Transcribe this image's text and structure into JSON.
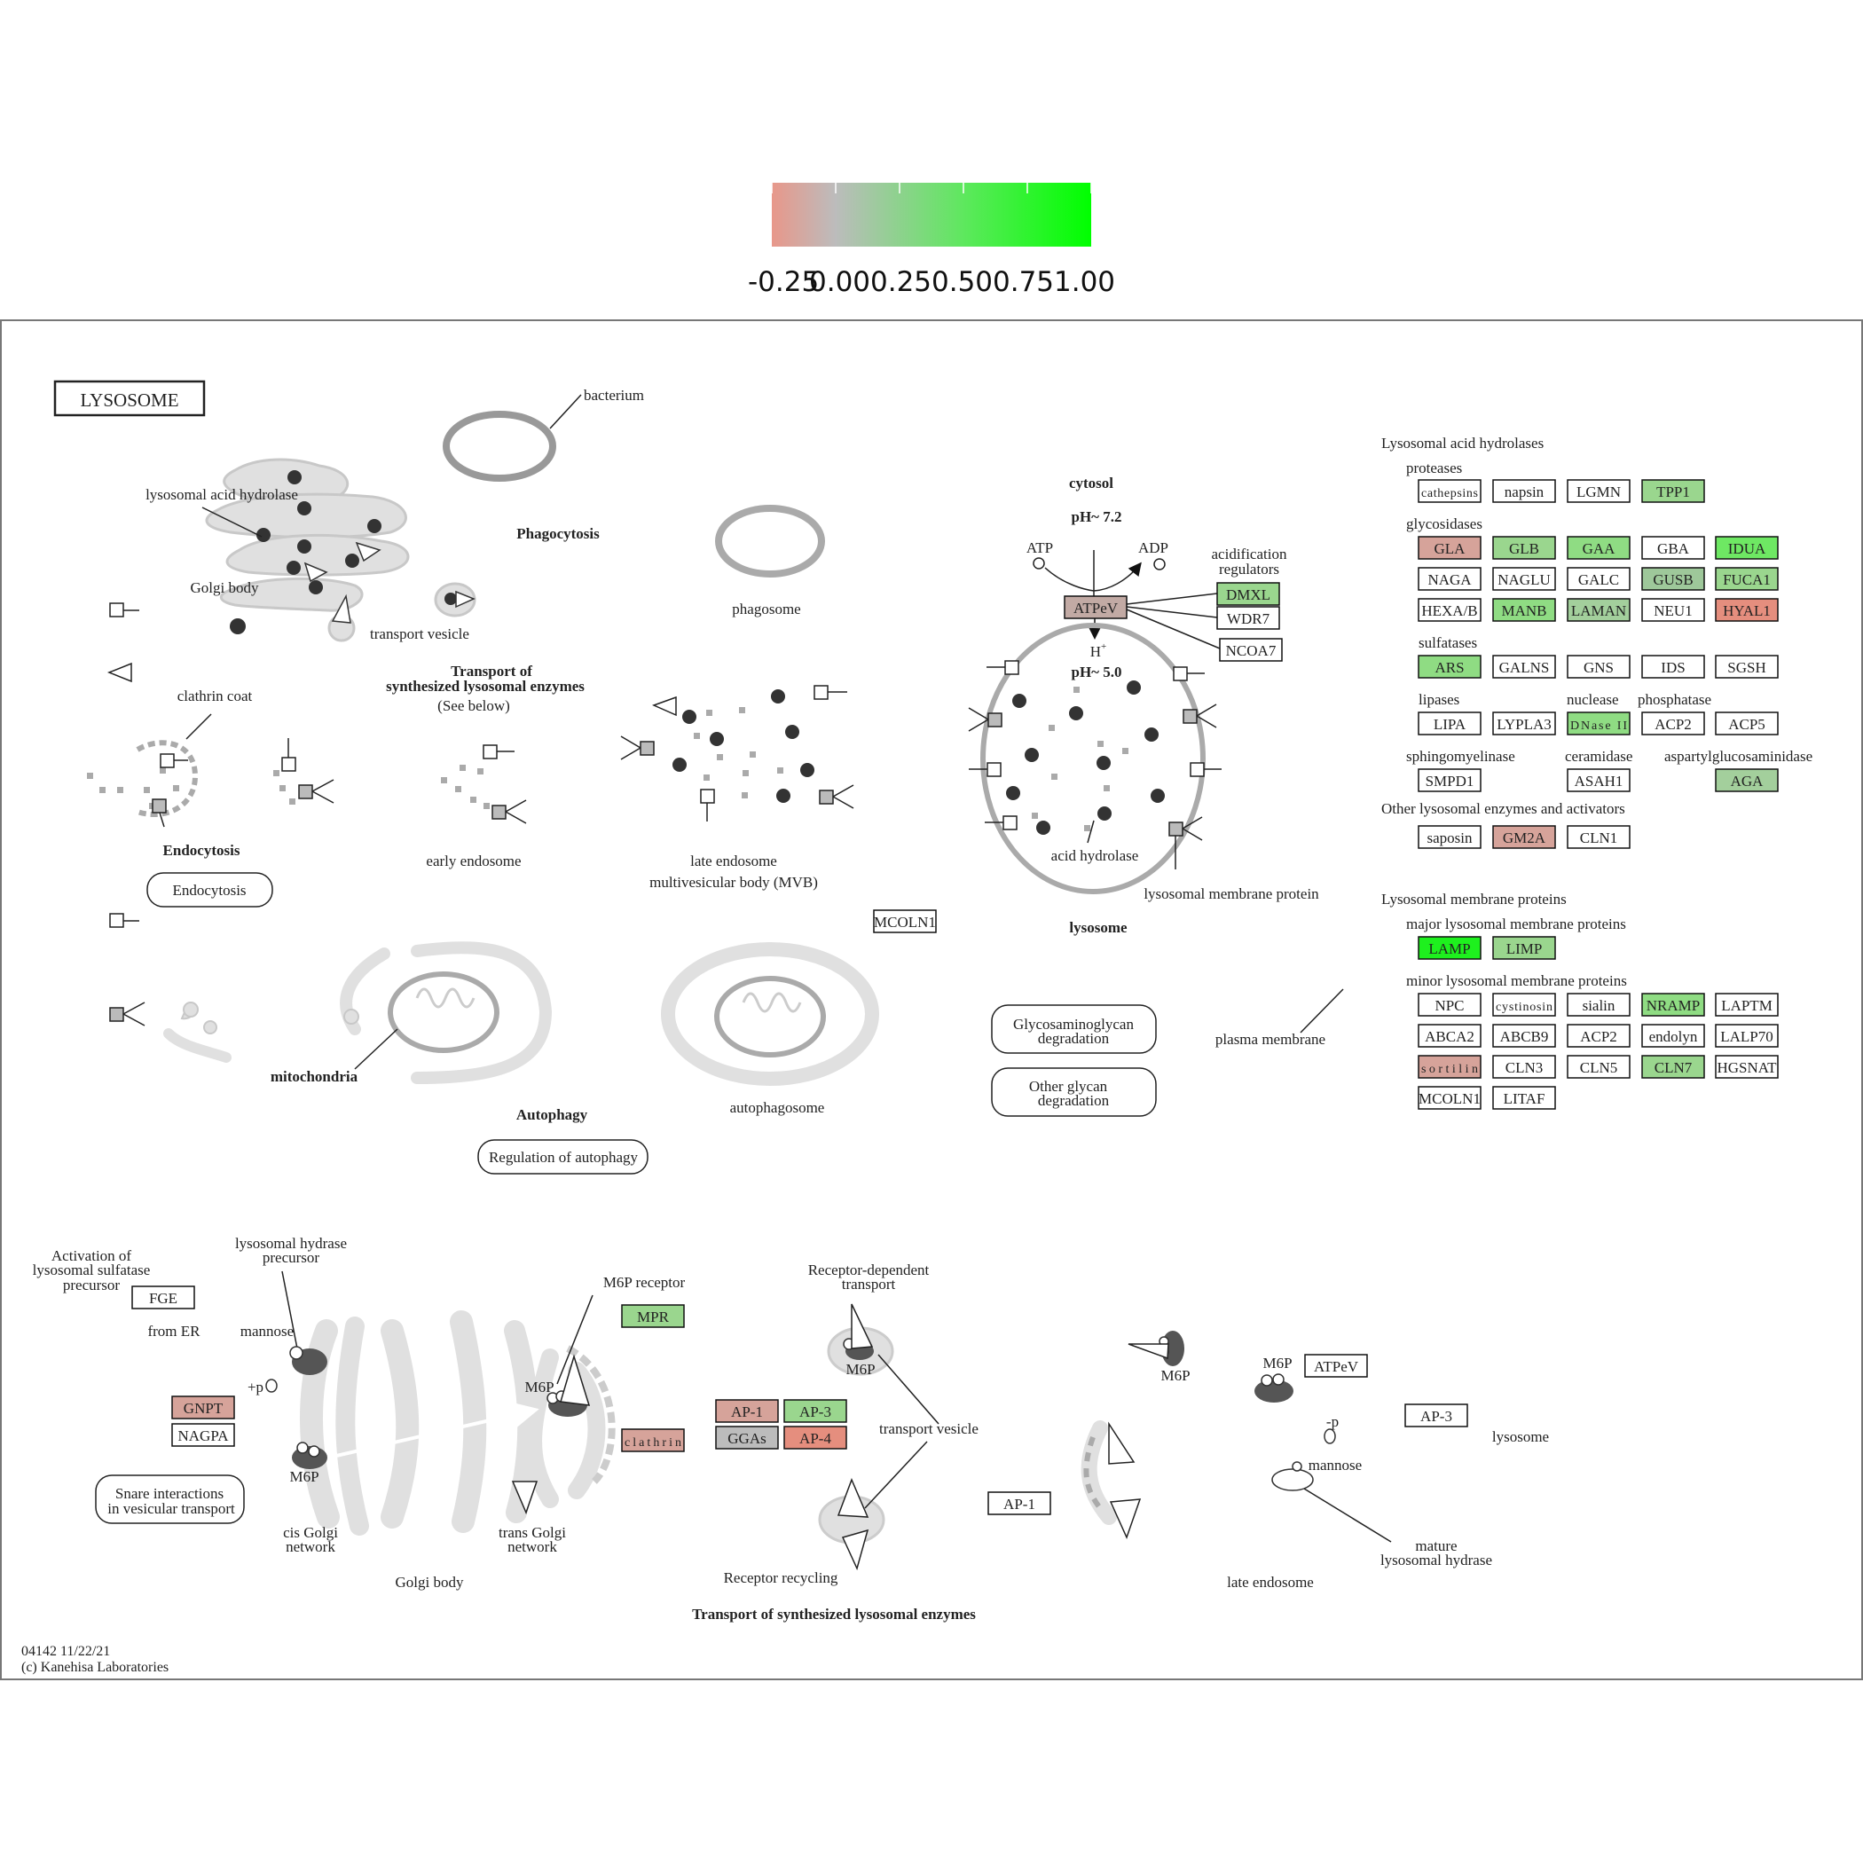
{
  "legend": {
    "ticks": [
      "-0.25",
      "0.00",
      "0.25",
      "0.50",
      "0.75",
      "1.00"
    ],
    "colors": [
      "#e8978a",
      "#bcbcbc",
      "#5ee85e",
      "#00ff00"
    ]
  },
  "title": "LYSOSOME",
  "labels": {
    "bacterium": "bacterium",
    "lysosomal_acid_hydrolase": "lysosomal acid hydrolase",
    "phagocytosis": "Phagocytosis",
    "golgi_body": "Golgi body",
    "transport_vesicle": "transport vesicle",
    "phagosome": "phagosome",
    "transport_of": "Transport of",
    "synth_enzymes": "synthesized lysosomal enzymes",
    "see_below": "(See below)",
    "clathrin_coat": "clathrin coat",
    "endocytosis_bold": "Endocytosis",
    "early_endosome": "early endosome",
    "late_endosome": "late endosome",
    "mvb": "multivesicular body (MVB)",
    "cytosol": "cytosol",
    "ph72": "pH~ 7.2",
    "atp": "ATP",
    "adp": "ADP",
    "acid_reg_1": "acidification",
    "acid_reg_2": "regulators",
    "hplus": "H",
    "ph50": "pH~ 5.0",
    "acid_hydrolase": "acid  hydrolase",
    "lys_mem_protein": "lysosomal membrane protein",
    "lysosome": "lysosome",
    "mitochondria": "mitochondria",
    "autophagy": "Autophagy",
    "autophagosome": "autophagosome",
    "plasma_membrane": "plasma membrane",
    "act_1": "Activation of",
    "act_2": "lysosomal sulfatase",
    "act_3": "precursor",
    "hyd_prec_1": "lysosomal hydrase",
    "hyd_prec_2": "precursor",
    "from_er": "from ER",
    "mannose": "mannose",
    "plus_p": "+p",
    "m6p": "M6P",
    "m6p_receptor": "M6P receptor",
    "rec_dep_1": "Receptor-dependent",
    "rec_dep_2": "transport",
    "transport_vesicle2": "transport vesicle",
    "cis_golgi_1": "cis Golgi",
    "cis_golgi_2": "network",
    "trans_golgi_1": "trans Golgi",
    "trans_golgi_2": "network",
    "golgi_body2": "Golgi body",
    "receptor_recycling": "Receptor recycling",
    "transport_bottom": "Transport of synthesized lysosomal enzymes",
    "minus_p": "-p",
    "mannose2": "mannose",
    "lysosome2": "lysosome",
    "mature_1": "mature",
    "mature_2": "lysosomal hydrase",
    "late_endosome2": "late endosome",
    "footer_1": "04142 11/22/21",
    "footer_2": "(c) Kanehisa Laboratories"
  },
  "rounded_boxes": {
    "endocytosis": "Endocytosis",
    "regulation_autophagy": "Regulation of autophagy",
    "gag_1": "Glycosaminoglycan",
    "gag_2": "degradation",
    "og_1": "Other glycan",
    "og_2": "degradation",
    "snare_1": "Snare interactions",
    "snare_2": "in vesicular transport"
  },
  "right_panel": {
    "hydrolases_title": "Lysosomal acid hydrolases",
    "proteases": "proteases",
    "glycosidases": "glycosidases",
    "sulfatases": "sulfatases",
    "lipases": "lipases",
    "nuclease": "nuclease",
    "phosphatase": "phosphatase",
    "sphingomyelinase": "sphingomyelinase",
    "ceramidase": "ceramidase",
    "aspartyl": "aspartylglucosaminidase",
    "other_enzymes": "Other lysosomal enzymes and activators",
    "membrane_title": "Lysosomal membrane  proteins",
    "major": "major lysosomal membrane proteins",
    "minor": "minor lysosomal membrane proteins"
  },
  "genes": {
    "cathepsins": {
      "label": "cathepsins",
      "color": "#ffffff"
    },
    "napsin": {
      "label": "napsin",
      "color": "#ffffff"
    },
    "LGMN": {
      "label": "LGMN",
      "color": "#ffffff"
    },
    "TPP1": {
      "label": "TPP1",
      "color": "#9ad68e"
    },
    "GLA": {
      "label": "GLA",
      "color": "#d6a39a"
    },
    "GLB": {
      "label": "GLB",
      "color": "#9ad68e"
    },
    "GAA": {
      "label": "GAA",
      "color": "#8fdc83"
    },
    "GBA": {
      "label": "GBA",
      "color": "#ffffff"
    },
    "IDUA": {
      "label": "IDUA",
      "color": "#6ee863"
    },
    "NAGA": {
      "label": "NAGA",
      "color": "#ffffff"
    },
    "NAGLU": {
      "label": "NAGLU",
      "color": "#ffffff"
    },
    "GALC": {
      "label": "GALC",
      "color": "#ffffff"
    },
    "GUSB": {
      "label": "GUSB",
      "color": "#9ec89a"
    },
    "FUCA1": {
      "label": "FUCA1",
      "color": "#9ad68e"
    },
    "HEXAB": {
      "label": "HEXA/B",
      "color": "#ffffff"
    },
    "MANB": {
      "label": "MANB",
      "color": "#8fdc83"
    },
    "LAMAN": {
      "label": "LAMAN",
      "color": "#a3cf9c"
    },
    "NEU1": {
      "label": "NEU1",
      "color": "#ffffff"
    },
    "HYAL1": {
      "label": "HYAL1",
      "color": "#e58e7e"
    },
    "ARS": {
      "label": "ARS",
      "color": "#8fdc83"
    },
    "GALNS": {
      "label": "GALNS",
      "color": "#ffffff"
    },
    "GNS": {
      "label": "GNS",
      "color": "#ffffff"
    },
    "IDS": {
      "label": "IDS",
      "color": "#ffffff"
    },
    "SGSH": {
      "label": "SGSH",
      "color": "#ffffff"
    },
    "LIPA": {
      "label": "LIPA",
      "color": "#ffffff"
    },
    "LYPLA3": {
      "label": "LYPLA3",
      "color": "#ffffff"
    },
    "DNaseII": {
      "label": "DNase II",
      "color": "#8fdc83"
    },
    "ACP2": {
      "label": "ACP2",
      "color": "#ffffff"
    },
    "ACP5": {
      "label": "ACP5",
      "color": "#ffffff"
    },
    "SMPD1": {
      "label": "SMPD1",
      "color": "#ffffff"
    },
    "ASAH1": {
      "label": "ASAH1",
      "color": "#ffffff"
    },
    "AGA": {
      "label": "AGA",
      "color": "#a3cf9c"
    },
    "saposin": {
      "label": "saposin",
      "color": "#ffffff"
    },
    "GM2A": {
      "label": "GM2A",
      "color": "#d6a39a"
    },
    "CLN1": {
      "label": "CLN1",
      "color": "#ffffff"
    },
    "LAMP": {
      "label": "LAMP",
      "color": "#1ef01e"
    },
    "LIMP": {
      "label": "LIMP",
      "color": "#9ad68e"
    },
    "NPC": {
      "label": "NPC",
      "color": "#ffffff"
    },
    "cystinosin": {
      "label": "cystinosin",
      "color": "#ffffff"
    },
    "sialin": {
      "label": "sialin",
      "color": "#ffffff"
    },
    "NRAMP": {
      "label": "NRAMP",
      "color": "#8fdc83"
    },
    "LAPTM": {
      "label": "LAPTM",
      "color": "#ffffff"
    },
    "ABCA2": {
      "label": "ABCA2",
      "color": "#ffffff"
    },
    "ABCB9": {
      "label": "ABCB9",
      "color": "#ffffff"
    },
    "ACP2b": {
      "label": "ACP2",
      "color": "#ffffff"
    },
    "endolyn": {
      "label": "endolyn",
      "color": "#ffffff"
    },
    "LALP70": {
      "label": "LALP70",
      "color": "#ffffff"
    },
    "sortilin": {
      "label": "sortilin",
      "color": "#d6a39a"
    },
    "CLN3": {
      "label": "CLN3",
      "color": "#ffffff"
    },
    "CLN5": {
      "label": "CLN5",
      "color": "#ffffff"
    },
    "CLN7": {
      "label": "CLN7",
      "color": "#9ad68e"
    },
    "HGSNAT": {
      "label": "HGSNAT",
      "color": "#ffffff"
    },
    "MCOLN1": {
      "label": "MCOLN1",
      "color": "#ffffff"
    },
    "LITAF": {
      "label": "LITAF",
      "color": "#ffffff"
    },
    "DMXL": {
      "label": "DMXL",
      "color": "#9ad68e"
    },
    "WDR7": {
      "label": "WDR7",
      "color": "#ffffff"
    },
    "NCOA7": {
      "label": "NCOA7",
      "color": "#ffffff"
    },
    "ATPeV": {
      "label": "ATPeV",
      "color": "#c2aaa4"
    },
    "MCOLN1_mid": {
      "label": "MCOLN1",
      "color": "#ffffff"
    },
    "FGE": {
      "label": "FGE",
      "color": "#ffffff"
    },
    "GNPT": {
      "label": "GNPT",
      "color": "#d6a39a"
    },
    "NAGPA": {
      "label": "NAGPA",
      "color": "#ffffff"
    },
    "MPR": {
      "label": "MPR",
      "color": "#9ad68e"
    },
    "clathrin": {
      "label": "clathrin",
      "color": "#d6a39a"
    },
    "AP1": {
      "label": "AP-1",
      "color": "#d6a39a"
    },
    "AP3": {
      "label": "AP-3",
      "color": "#9ad68e"
    },
    "GGAs": {
      "label": "GGAs",
      "color": "#bcbcbc"
    },
    "AP4": {
      "label": "AP-4",
      "color": "#e58e7e"
    },
    "AP1b": {
      "label": "AP-1",
      "color": "#ffffff"
    },
    "ATPeV2": {
      "label": "ATPeV",
      "color": "#ffffff"
    },
    "AP3b": {
      "label": "AP-3",
      "color": "#ffffff"
    }
  }
}
